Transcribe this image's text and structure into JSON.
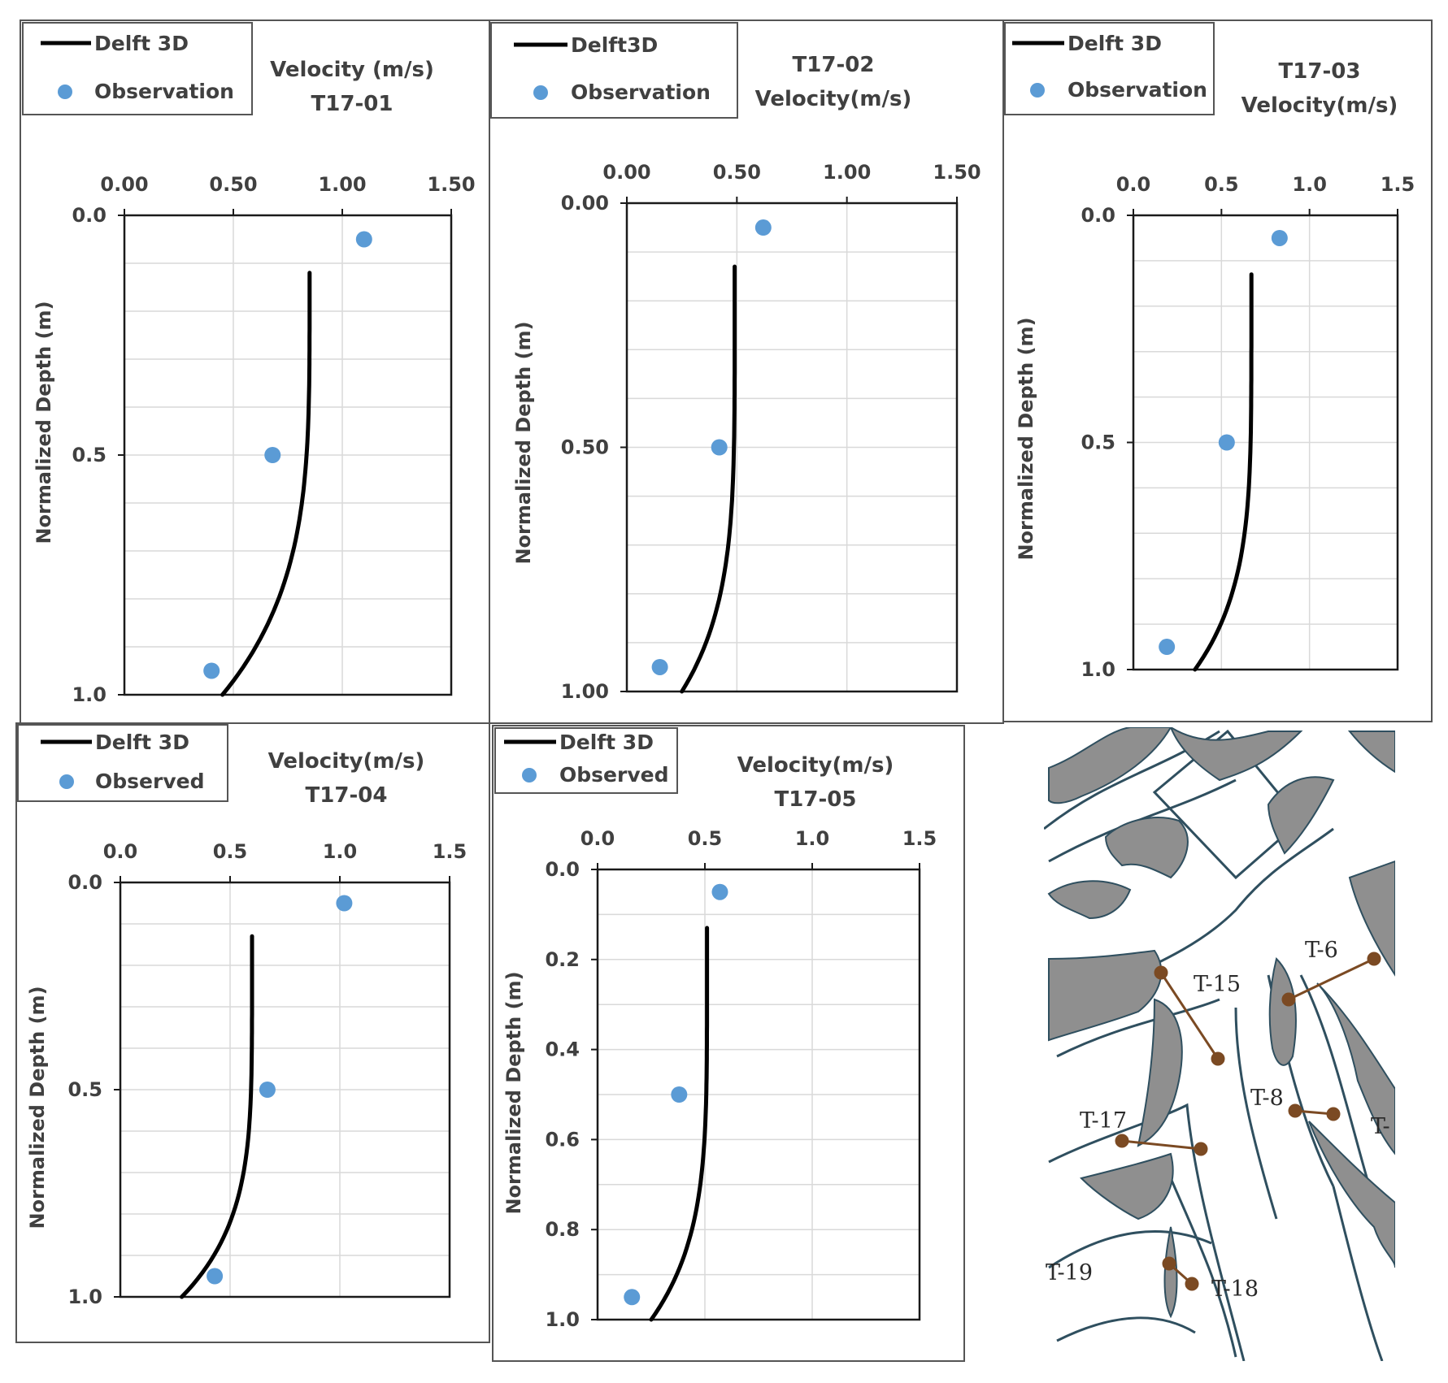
{
  "colors": {
    "model_line": "#000000",
    "observation_marker": "#5B9BD5",
    "grid": "#d9d9d9",
    "frame": "#1a1a1a",
    "map_land": "#8f8f8f",
    "map_outline": "#2f4f5f",
    "transect_line": "#7b4a23"
  },
  "chart_data": [
    {
      "type": "scatter+line",
      "panel": "T17-01",
      "title_lines": [
        "Velocity (m/s)",
        "T17-01"
      ],
      "ylabel": "Normalized Depth (m)",
      "xlim": [
        0,
        1.5
      ],
      "ylim": [
        0,
        1.0
      ],
      "y_inverted": true,
      "x_axis_position": "top",
      "x_ticks": [
        "0.00",
        "0.50",
        "1.00",
        "1.50"
      ],
      "y_ticks": [
        "0.0",
        "0.5",
        "1.0"
      ],
      "y_tick_values": [
        0,
        0.5,
        1.0
      ],
      "legend": [
        "Delft 3D",
        "Observation"
      ],
      "model": {
        "name": "Delft 3D",
        "u_surface": 0.85,
        "u_bottom": 0.45,
        "y_top": 0.12,
        "exponent": 4
      },
      "observations": [
        {
          "x": 1.1,
          "y": 0.05
        },
        {
          "x": 0.68,
          "y": 0.5
        },
        {
          "x": 0.4,
          "y": 0.95
        }
      ]
    },
    {
      "type": "scatter+line",
      "panel": "T17-02",
      "title_lines": [
        "T17-02",
        "Velocity(m/s)"
      ],
      "ylabel": "Normalized Depth (m)",
      "xlim": [
        0,
        1.5
      ],
      "ylim": [
        0,
        1.0
      ],
      "y_inverted": true,
      "x_axis_position": "top",
      "x_ticks": [
        "0.00",
        "0.50",
        "1.00",
        "1.50"
      ],
      "y_ticks": [
        "0.00",
        "0.50",
        "1.00"
      ],
      "y_tick_values": [
        0,
        0.5,
        1.0
      ],
      "legend": [
        "Delft3D",
        "Observation"
      ],
      "model": {
        "name": "Delft3D",
        "u_surface": 0.49,
        "u_bottom": 0.25,
        "y_top": 0.13,
        "exponent": 5
      },
      "observations": [
        {
          "x": 0.62,
          "y": 0.05
        },
        {
          "x": 0.42,
          "y": 0.5
        },
        {
          "x": 0.15,
          "y": 0.95
        }
      ]
    },
    {
      "type": "scatter+line",
      "panel": "T17-03",
      "title_lines": [
        "T17-03",
        "Velocity(m/s)"
      ],
      "ylabel": "Normalized Depth (m)",
      "xlim": [
        0,
        1.5
      ],
      "ylim": [
        0,
        1.0
      ],
      "y_inverted": true,
      "x_axis_position": "top",
      "x_ticks": [
        "0.0",
        "0.5",
        "1.0",
        "1.5"
      ],
      "y_ticks": [
        "0.0",
        "0.5",
        "1.0"
      ],
      "y_tick_values": [
        0,
        0.5,
        1.0
      ],
      "legend": [
        "Delft 3D",
        "Observation"
      ],
      "model": {
        "name": "Delft 3D",
        "u_surface": 0.67,
        "u_bottom": 0.35,
        "y_top": 0.13,
        "exponent": 5
      },
      "observations": [
        {
          "x": 0.83,
          "y": 0.05
        },
        {
          "x": 0.53,
          "y": 0.5
        },
        {
          "x": 0.19,
          "y": 0.95
        }
      ]
    },
    {
      "type": "scatter+line",
      "panel": "T17-04",
      "title_lines": [
        "Velocity(m/s)",
        "T17-04"
      ],
      "ylabel": "Normalized Depth (m)",
      "xlim": [
        0,
        1.5
      ],
      "ylim": [
        0,
        1.0
      ],
      "y_inverted": true,
      "x_axis_position": "top",
      "x_ticks": [
        "0.0",
        "0.5",
        "1.0",
        "1.5"
      ],
      "y_ticks": [
        "0.0",
        "0.5",
        "1.0"
      ],
      "y_tick_values": [
        0,
        0.5,
        1.0
      ],
      "legend": [
        "Delft 3D",
        "Observed"
      ],
      "model": {
        "name": "Delft 3D",
        "u_surface": 0.6,
        "u_bottom": 0.28,
        "y_top": 0.13,
        "exponent": 5
      },
      "observations": [
        {
          "x": 1.02,
          "y": 0.05
        },
        {
          "x": 0.67,
          "y": 0.5
        },
        {
          "x": 0.43,
          "y": 0.95
        }
      ]
    },
    {
      "type": "scatter+line",
      "panel": "T17-05",
      "title_lines": [
        "Velocity(m/s)",
        "T17-05"
      ],
      "ylabel": "Normalized Depth (m)",
      "xlim": [
        0,
        1.5
      ],
      "ylim": [
        0,
        1.0
      ],
      "y_inverted": true,
      "x_axis_position": "top",
      "x_ticks": [
        "0.0",
        "0.5",
        "1.0",
        "1.5"
      ],
      "y_ticks": [
        "0.0",
        "0.2",
        "0.4",
        "0.6",
        "0.8",
        "1.0"
      ],
      "y_tick_values": [
        0,
        0.2,
        0.4,
        0.6,
        0.8,
        1.0
      ],
      "legend": [
        "Delft 3D",
        "Observed"
      ],
      "model": {
        "name": "Delft 3D",
        "u_surface": 0.51,
        "u_bottom": 0.25,
        "y_top": 0.13,
        "exponent": 5
      },
      "observations": [
        {
          "x": 0.57,
          "y": 0.05
        },
        {
          "x": 0.38,
          "y": 0.5
        },
        {
          "x": 0.16,
          "y": 0.95
        }
      ]
    }
  ],
  "map": {
    "transect_labels": [
      "T-15",
      "T-6",
      "T-8",
      "T-",
      "T-17",
      "T-19",
      "T-18"
    ]
  }
}
